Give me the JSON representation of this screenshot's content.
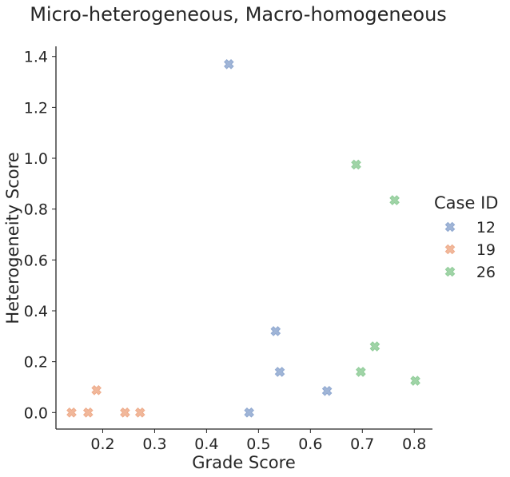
{
  "chart_data": {
    "type": "scatter",
    "title": "Micro-heterogeneous, Macro-homogeneous",
    "xlabel": "Grade Score",
    "ylabel": "Heterogeneity Score",
    "xlim": [
      0.11,
      0.835
    ],
    "ylim": [
      -0.065,
      1.44
    ],
    "xticks": [
      0.2,
      0.3,
      0.4,
      0.5,
      0.6,
      0.7,
      0.8
    ],
    "xtick_labels": [
      "0.2",
      "0.3",
      "0.4",
      "0.5",
      "0.6",
      "0.7",
      "0.8"
    ],
    "yticks": [
      0.0,
      0.2,
      0.4,
      0.6,
      0.8,
      1.0,
      1.2,
      1.4
    ],
    "ytick_labels": [
      "0.0",
      "0.2",
      "0.4",
      "0.6",
      "0.8",
      "1.0",
      "1.2",
      "1.4"
    ],
    "grid": false,
    "marker": "X",
    "legend": {
      "title": "Case ID",
      "placement": "right"
    },
    "series": [
      {
        "name": "12",
        "color": "#8fa8d0",
        "points": [
          [
            0.443,
            1.37
          ],
          [
            0.482,
            0.0
          ],
          [
            0.533,
            0.32
          ],
          [
            0.541,
            0.16
          ],
          [
            0.632,
            0.085
          ]
        ]
      },
      {
        "name": "19",
        "color": "#eeab8a",
        "points": [
          [
            0.14,
            0.0
          ],
          [
            0.172,
            0.0
          ],
          [
            0.188,
            0.088
          ],
          [
            0.243,
            0.0
          ],
          [
            0.272,
            0.0
          ]
        ]
      },
      {
        "name": "26",
        "color": "#8fcc98",
        "points": [
          [
            0.688,
            0.975
          ],
          [
            0.697,
            0.16
          ],
          [
            0.724,
            0.26
          ],
          [
            0.762,
            0.835
          ],
          [
            0.802,
            0.125
          ]
        ]
      }
    ]
  }
}
